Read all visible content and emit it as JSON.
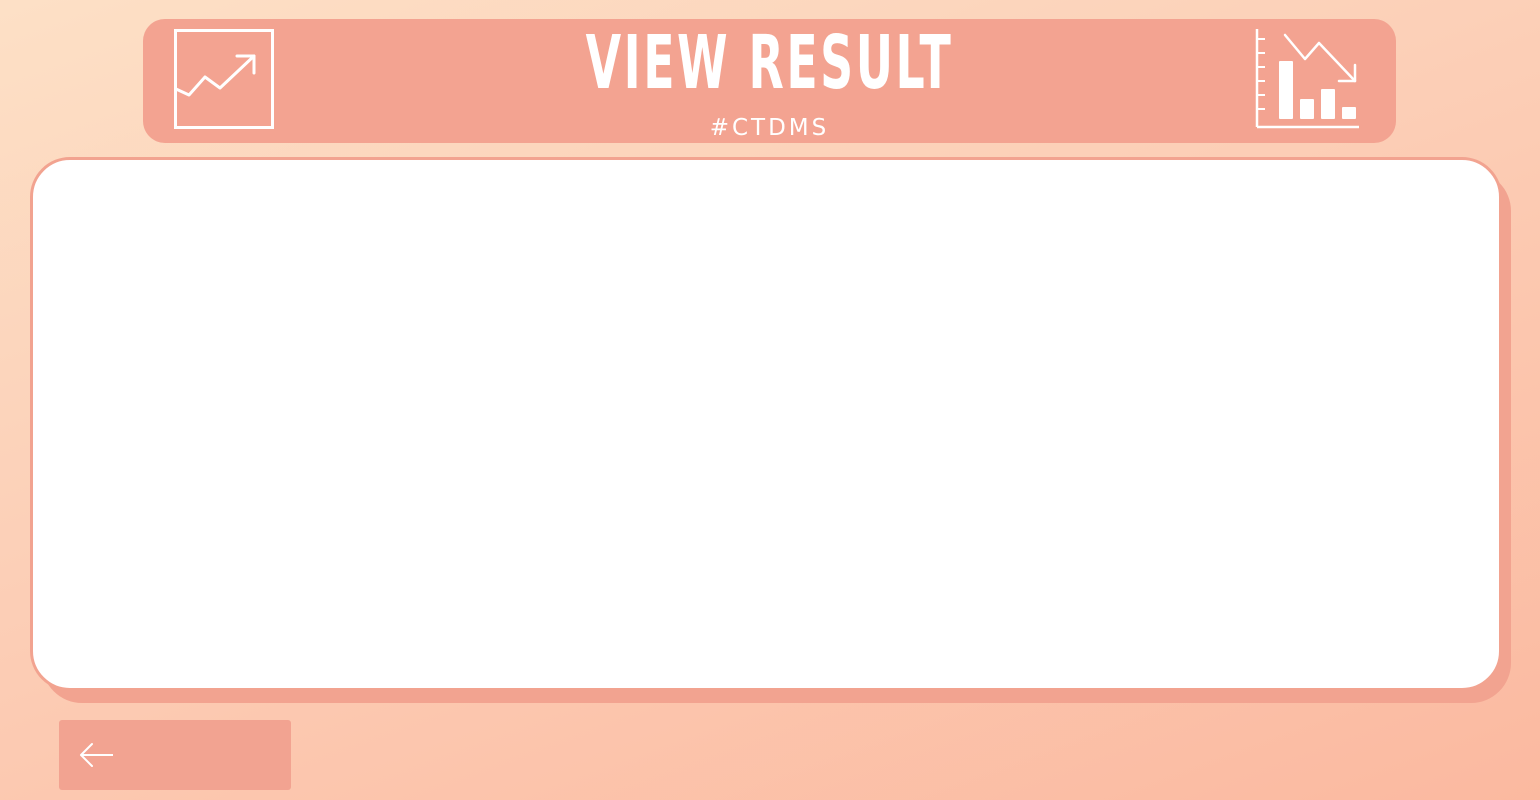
{
  "header": {
    "title": "VIEW RESULT",
    "subtitle": "#CTDMS",
    "left_icon": "trend-up-chart-icon",
    "right_icon": "bar-chart-trend-down-icon"
  },
  "results_panel": {
    "content": ""
  },
  "back_button": {
    "icon": "arrow-left-icon"
  },
  "colors": {
    "accent": "#f3a391",
    "background_start": "#fde0c6",
    "background_end": "#fbb9a0",
    "panel": "#ffffff",
    "text_on_accent": "#ffffff"
  }
}
